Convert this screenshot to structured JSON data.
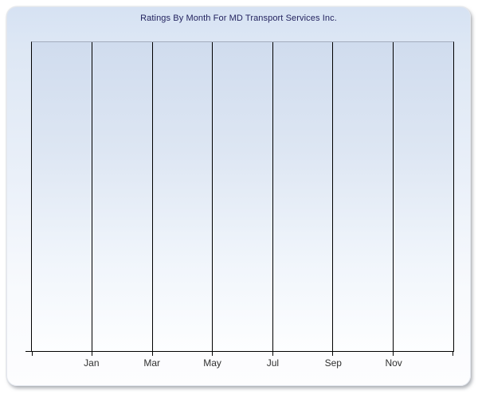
{
  "chart_data": {
    "type": "line",
    "title": "Ratings By Month For MD Transport Services Inc.",
    "categories": [
      "Jan",
      "Mar",
      "May",
      "Jul",
      "Sep",
      "Nov"
    ],
    "series": [],
    "xlabel": "",
    "ylabel": "",
    "legend": "none",
    "grid": "vertical",
    "y_tick_labels": [],
    "plot_is_empty": true
  },
  "colors": {
    "panel_top": "#d6e2f3",
    "panel_bottom": "#fdfdfe",
    "plot_top": "#d0dcee",
    "plot_bottom": "#fdfeff",
    "plot_top_border": "#a3abbd",
    "axis": "#000000",
    "title_text": "#23235f",
    "tick_label": "#303030"
  }
}
